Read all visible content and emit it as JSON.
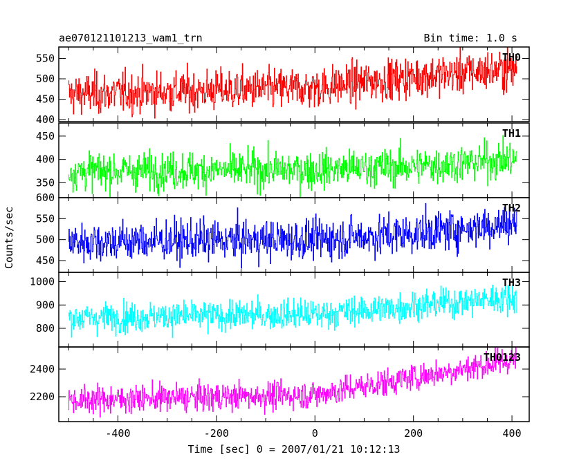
{
  "chart_data": {
    "type": "line",
    "title": "ae070121101213_wam1_trn",
    "subtitle": "Bin time: 1.0 s",
    "xlabel": "Time [sec] 0 = 2007/01/21 10:12:13",
    "ylabel": "Counts/sec",
    "xlim": [
      -520,
      435
    ],
    "x_range": [
      -500,
      410
    ],
    "x_step": 1,
    "x_ticks": [
      -400,
      -200,
      0,
      200,
      400
    ],
    "grid": false,
    "panels": [
      {
        "name": "TH0",
        "color": "#ff0000",
        "ylim": [
          395,
          578
        ],
        "y_ticks": [
          400,
          450,
          500,
          550
        ],
        "trend": [
          [
            -500,
            462
          ],
          [
            0,
            478
          ],
          [
            200,
            505
          ],
          [
            410,
            525
          ]
        ],
        "noise": 25
      },
      {
        "name": "TH1",
        "color": "#00ff00",
        "ylim": [
          318,
          478
        ],
        "y_ticks": [
          350,
          400,
          450
        ],
        "trend": [
          [
            -500,
            375
          ],
          [
            0,
            378
          ],
          [
            200,
            385
          ],
          [
            410,
            400
          ]
        ],
        "noise": 20
      },
      {
        "name": "TH2",
        "color": "#0000ff",
        "ylim": [
          422,
          600
        ],
        "y_ticks": [
          450,
          500,
          550,
          600
        ],
        "trend": [
          [
            -500,
            495
          ],
          [
            0,
            500
          ],
          [
            200,
            515
          ],
          [
            410,
            540
          ]
        ],
        "noise": 24
      },
      {
        "name": "TH3",
        "color": "#00ffff",
        "ylim": [
          720,
          1040
        ],
        "y_ticks": [
          800,
          900,
          1000
        ],
        "trend": [
          [
            -500,
            845
          ],
          [
            0,
            860
          ],
          [
            200,
            895
          ],
          [
            410,
            935
          ]
        ],
        "noise": 32
      },
      {
        "name": "TH0123",
        "color": "#ff00ff",
        "ylim": [
          2020,
          2560
        ],
        "y_ticks": [
          2200,
          2400
        ],
        "trend": [
          [
            -500,
            2175
          ],
          [
            0,
            2215
          ],
          [
            200,
            2340
          ],
          [
            410,
            2470
          ]
        ],
        "noise": 50
      }
    ]
  }
}
